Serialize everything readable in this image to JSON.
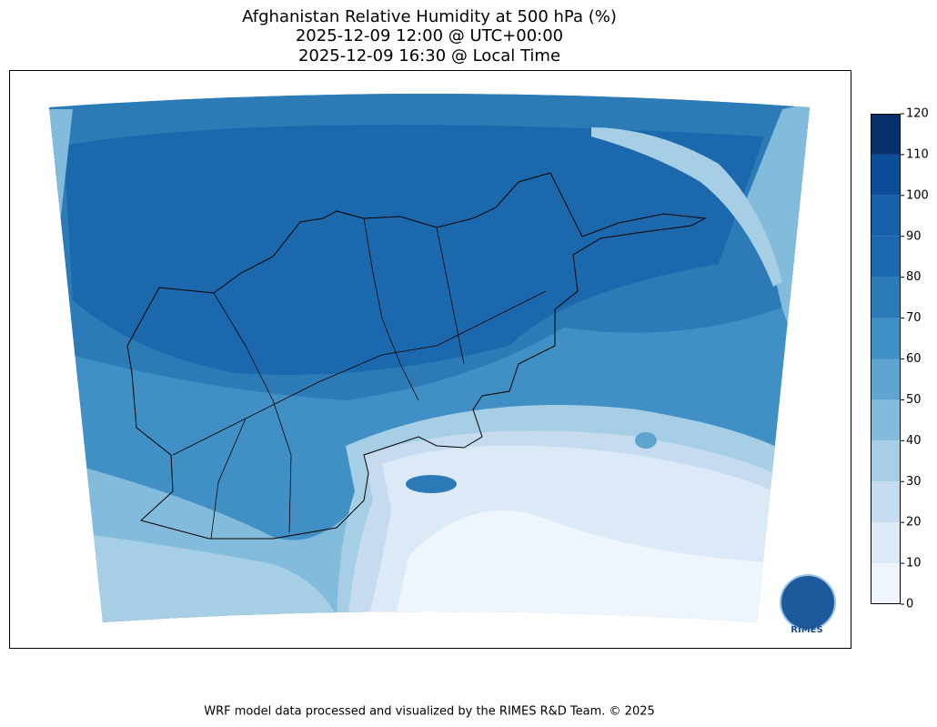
{
  "title": [
    "Afghanistan Relative Humidity at 500 hPa (%)",
    "2025-12-09 12:00 @ UTC+00:00",
    "2025-12-09 16:30 @ Local Time"
  ],
  "colorbar": {
    "lim": [
      0,
      120
    ],
    "ticks": [
      0,
      10,
      20,
      30,
      40,
      50,
      60,
      70,
      80,
      90,
      100,
      110,
      120
    ],
    "colors": [
      "#eef5fc",
      "#dce9f6",
      "#c6dbef",
      "#a6cee4",
      "#82bbdb",
      "#5ea5d1",
      "#4190c5",
      "#2c7bb6",
      "#1c68ad",
      "#1760aa",
      "#0b4d99",
      "#08306b"
    ]
  },
  "logo": "RIMES",
  "footer": "WRF model data processed and visualized by the RIMES R&D Team. © 2025"
}
